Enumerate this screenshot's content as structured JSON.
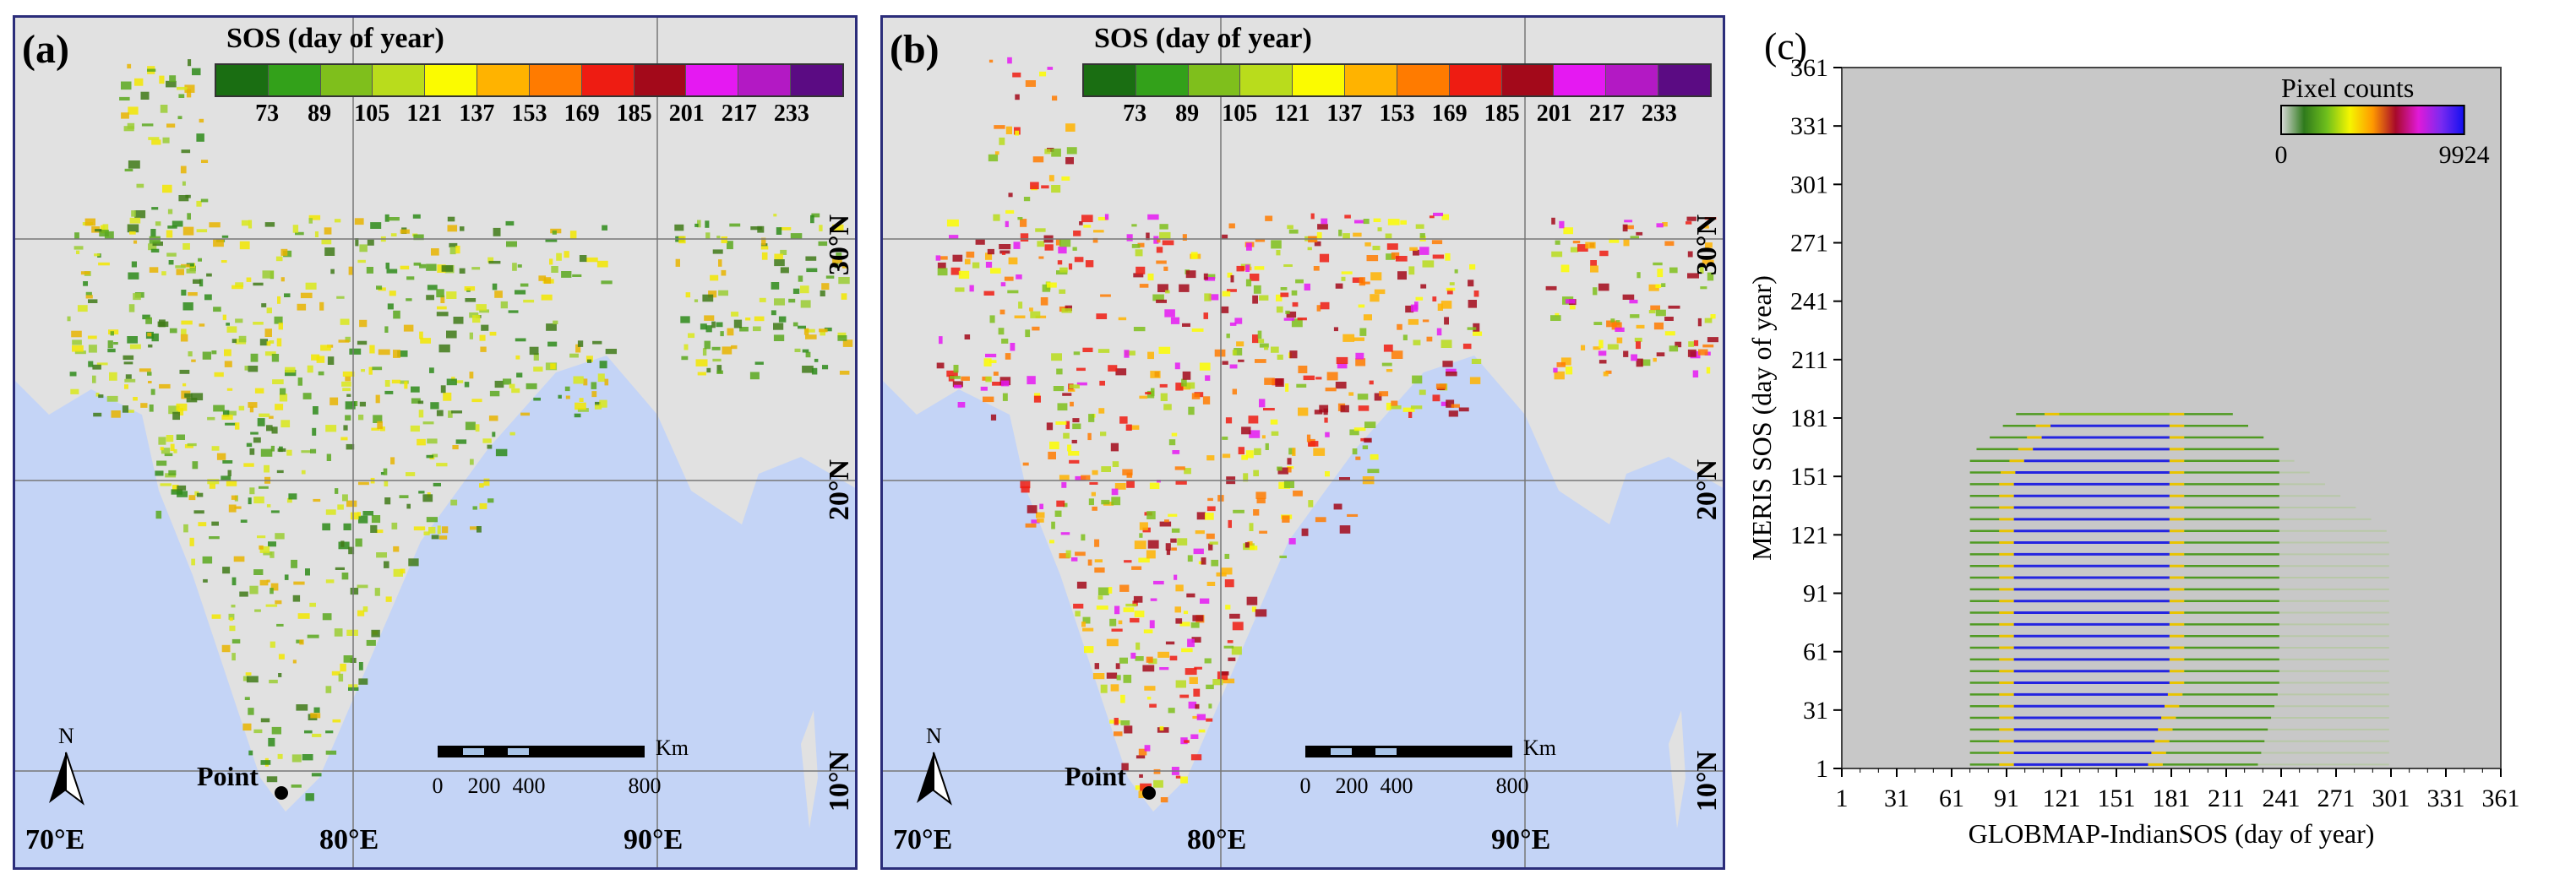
{
  "chart_data": [
    {
      "type": "heatmap",
      "panel_label": "(a)",
      "legend_title": "SOS (day of year)",
      "legend_colors": [
        "#1a6e12",
        "#33a11a",
        "#7fbf1c",
        "#b9dc1c",
        "#fbfb00",
        "#ffb300",
        "#ff7b00",
        "#ee1c12",
        "#a3091a",
        "#e519f2",
        "#b319c4",
        "#5b0b83"
      ],
      "legend_ticks": [
        "73",
        "89",
        "105",
        "121",
        "137",
        "153",
        "169",
        "185",
        "201",
        "217",
        "233"
      ],
      "lat_labels": [
        "30°N",
        "20°N",
        "10°N"
      ],
      "lon_labels": [
        "70°E",
        "80°E",
        "90°E"
      ],
      "point_label": "Point",
      "north_label": "N",
      "scale_ticks": [
        "0",
        "200",
        "400",
        "800"
      ],
      "scale_unit": "Km"
    },
    {
      "type": "heatmap",
      "panel_label": "(b)",
      "legend_title": "SOS (day of year)",
      "legend_colors": [
        "#1a6e12",
        "#33a11a",
        "#7fbf1c",
        "#b9dc1c",
        "#fbfb00",
        "#ffb300",
        "#ff7b00",
        "#ee1c12",
        "#a3091a",
        "#e519f2",
        "#b319c4",
        "#5b0b83"
      ],
      "legend_ticks": [
        "73",
        "89",
        "105",
        "121",
        "137",
        "153",
        "169",
        "185",
        "201",
        "217",
        "233"
      ],
      "lat_labels": [
        "30°N",
        "20°N",
        "10°N"
      ],
      "lon_labels": [
        "70°E",
        "80°E",
        "90°E"
      ],
      "point_label": "Point",
      "north_label": "N",
      "scale_ticks": [
        "0",
        "200",
        "400",
        "800"
      ],
      "scale_unit": "Km"
    },
    {
      "type": "heatmap",
      "panel_label": "(c)",
      "xlabel": "GLOBMAP-IndianSOS (day of year)",
      "ylabel": "MERIS SOS (day of year)",
      "xlim": [
        1,
        361
      ],
      "ylim": [
        1,
        361
      ],
      "x_ticks": [
        1,
        31,
        61,
        91,
        121,
        151,
        181,
        211,
        241,
        271,
        301,
        331,
        361
      ],
      "y_ticks": [
        1,
        31,
        61,
        91,
        121,
        151,
        181,
        211,
        241,
        271,
        301,
        331,
        361
      ],
      "colorbar_title": "Pixel counts",
      "colorbar_min": "0",
      "colorbar_max": "9924",
      "colorbar_colors": [
        "#d9d9d9",
        "#2f7a1c",
        "#6fbf1c",
        "#f5f500",
        "#ff9900",
        "#a80a2a",
        "#e01ad8",
        "#7a2af0",
        "#1010f0"
      ],
      "background": "#c8c8c8"
    }
  ]
}
